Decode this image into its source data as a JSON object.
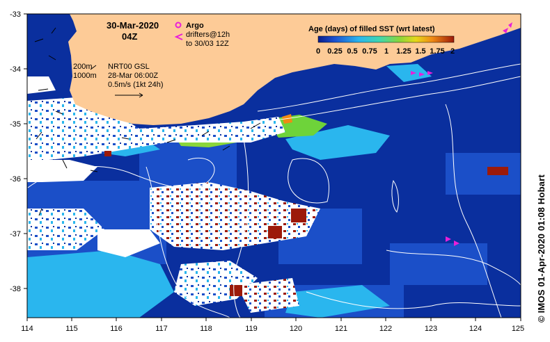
{
  "map": {
    "date": "30-Mar-2020",
    "time": "04Z",
    "argo_label": "Argo",
    "drifters_label_1": "drifters@12h",
    "drifters_label_2": "to 30/03 12Z",
    "depth_200": "200m",
    "depth_1000": "1000m",
    "gsl_line_1": "NRT00 GSL",
    "gsl_line_2": "28-Mar 06:00Z",
    "gsl_line_3": "0.5m/s (1kt 24h)",
    "legend_title": "Age (days) of filled SST (wrt latest)",
    "legend_ticks": [
      "0",
      "0.25",
      "0.5",
      "0.75",
      "1",
      "1.25",
      "1.5",
      "1.75",
      "2"
    ],
    "credit": "© IMOS 01-Apr-2020 01:08 Hobart",
    "x_ticks": [
      "114",
      "115",
      "116",
      "117",
      "118",
      "119",
      "120",
      "121",
      "122",
      "123",
      "124",
      "125"
    ],
    "y_ticks": [
      "-33",
      "-34",
      "-35",
      "-36",
      "-37",
      "-38"
    ],
    "colors": {
      "land": "#fdcb97",
      "ocean_deep": "#0a2f9e",
      "ocean_mid": "#1b4fc8",
      "ocean_light": "#1fa8e8",
      "age_2": "#9c1a0a",
      "argo": "#e81fd9",
      "drifter": "#e81fd9",
      "contour": "#ffffff"
    }
  }
}
